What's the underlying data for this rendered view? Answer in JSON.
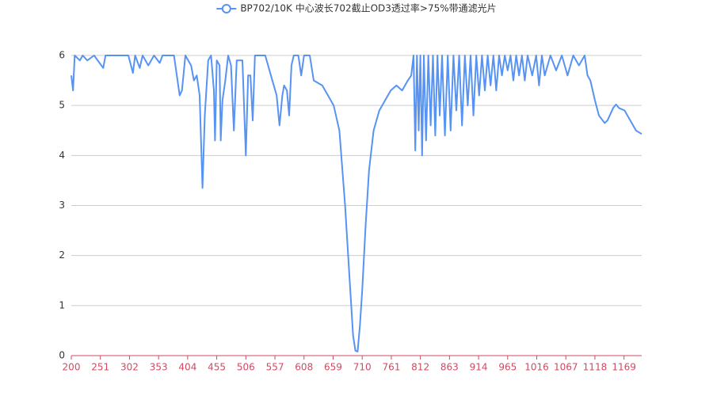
{
  "chart_data": {
    "type": "line",
    "series": [
      {
        "name": "BP702/10K 中心波长702截止OD3透过率>75%带通滤光片",
        "color": "#5793f3",
        "x": [
          200,
          203,
          206,
          215,
          220,
          228,
          240,
          256,
          260,
          280,
          300,
          308,
          312,
          320,
          325,
          335,
          345,
          355,
          360,
          380,
          390,
          394,
          400,
          410,
          415,
          420,
          425,
          430,
          434,
          440,
          445,
          450,
          452,
          455,
          460,
          462,
          465,
          470,
          475,
          480,
          485,
          490,
          500,
          506,
          510,
          514,
          518,
          522,
          540,
          550,
          560,
          565,
          570,
          573,
          578,
          582,
          586,
          590,
          598,
          603,
          608,
          618,
          625,
          640,
          650,
          660,
          670,
          680,
          688,
          694,
          698,
          702,
          706,
          710,
          716,
          722,
          730,
          740,
          750,
          760,
          770,
          780,
          790,
          796,
          800,
          803,
          806,
          809,
          812,
          815,
          818,
          822,
          826,
          830,
          834,
          838,
          842,
          846,
          850,
          855,
          860,
          865,
          870,
          875,
          880,
          885,
          890,
          895,
          900,
          905,
          910,
          915,
          920,
          925,
          930,
          935,
          940,
          945,
          950,
          955,
          960,
          965,
          970,
          975,
          980,
          985,
          990,
          995,
          1000,
          1008,
          1015,
          1020,
          1025,
          1030,
          1040,
          1050,
          1060,
          1070,
          1080,
          1090,
          1100,
          1105,
          1110,
          1118,
          1125,
          1135,
          1140,
          1150,
          1155,
          1160,
          1170,
          1180,
          1190,
          1200
        ],
        "values": [
          5.6,
          5.3,
          6,
          5.9,
          6,
          5.9,
          6,
          5.75,
          6,
          6,
          6,
          5.65,
          6,
          5.75,
          6,
          5.8,
          6,
          5.85,
          6,
          6,
          5.2,
          5.3,
          6,
          5.8,
          5.5,
          5.6,
          5.2,
          3.35,
          4.8,
          5.9,
          6,
          5.3,
          4.3,
          5.9,
          5.8,
          4.3,
          5.1,
          5.5,
          6,
          5.8,
          4.5,
          5.9,
          5.9,
          4.0,
          5.6,
          5.6,
          4.7,
          6,
          6,
          5.6,
          5.2,
          4.6,
          5.2,
          5.4,
          5.3,
          4.8,
          5.8,
          6,
          6,
          5.6,
          6,
          6,
          5.5,
          5.4,
          5.2,
          5.0,
          4.5,
          3.0,
          1.5,
          0.4,
          0.1,
          0.08,
          0.6,
          1.3,
          2.6,
          3.7,
          4.5,
          4.9,
          5.1,
          5.3,
          5.4,
          5.3,
          5.5,
          5.6,
          6,
          4.1,
          6,
          4.5,
          6,
          4.0,
          6,
          4.3,
          6,
          4.6,
          6,
          4.4,
          6,
          4.8,
          6,
          4.4,
          6,
          4.5,
          6,
          4.9,
          6,
          4.6,
          6,
          5.0,
          6,
          4.8,
          6,
          5.2,
          6,
          5.3,
          6,
          5.4,
          6,
          5.3,
          6,
          5.6,
          6,
          5.7,
          6,
          5.5,
          6,
          5.6,
          6,
          5.5,
          6,
          5.6,
          6,
          5.4,
          6,
          5.6,
          6,
          5.7,
          6,
          5.6,
          6,
          5.8,
          6,
          5.6,
          5.5,
          5.1,
          4.8,
          4.65,
          4.7,
          4.95,
          5.02,
          4.95,
          4.9,
          4.7,
          4.5,
          4.43
        ]
      }
    ],
    "xlim": [
      200,
      1200
    ],
    "xticks": [
      200,
      251,
      302,
      353,
      404,
      455,
      506,
      557,
      608,
      659,
      710,
      761,
      812,
      863,
      914,
      965,
      1016,
      1067,
      1118,
      1169
    ],
    "ylim": [
      0,
      6
    ],
    "yticks": [
      0,
      1,
      2,
      3,
      4,
      5,
      6
    ],
    "grid": true,
    "legend": "top"
  }
}
